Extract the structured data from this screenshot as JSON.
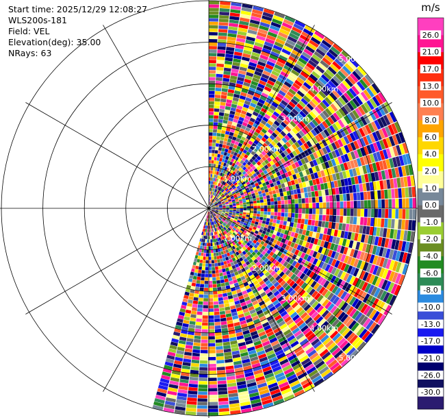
{
  "header": {
    "start_time": "Start time: 2025/12/29 12:08:27",
    "instrument": "WLS200s-181",
    "field": "Field: VEL",
    "elevation": "Elevation(deg): 35.00",
    "nrays": "NRays: 63"
  },
  "chart_data": {
    "type": "heatmap",
    "projection": "polar-ppi",
    "field": "VEL",
    "units": "m/s",
    "elevation_deg": 35.0,
    "n_rays": 63,
    "azimuth_start_deg": 0,
    "azimuth_end_deg": 196,
    "max_range_km": 5.0,
    "range_rings_km": [
      1.0,
      2.0,
      3.0,
      4.0,
      5.0
    ],
    "range_ring_labels": [
      "1.00km",
      "2.00km",
      "3.00km",
      "4.00km",
      "5.00km"
    ],
    "colorbar": {
      "label": "m/s",
      "ticks": [
        "26.0",
        "21.0",
        "17.0",
        "13.0",
        "10.0",
        "8.0",
        "6.0",
        "4.0",
        "2.0",
        "1.0",
        "0.0",
        "-1.0",
        "-2.0",
        "-4.0",
        "-6.0",
        "-8.0",
        "-10.0",
        "-13.0",
        "-17.0",
        "-21.0",
        "-26.0",
        "-30.0"
      ],
      "colors": [
        "#2b1b70",
        "#101060",
        "#00006e",
        "#0000c8",
        "#1a1af0",
        "#3a4ed8",
        "#2c8be0",
        "#2e8b57",
        "#228b22",
        "#6b8e23",
        "#9acd32",
        "#6a6a6a",
        "#778899",
        "#ffff99",
        "#ffff00",
        "#ffd700",
        "#ffa500",
        "#ff7f50",
        "#ff5a2a",
        "#ff3010",
        "#ff0000",
        "#ff1493",
        "#ff3fbf"
      ]
    },
    "grid": true
  }
}
